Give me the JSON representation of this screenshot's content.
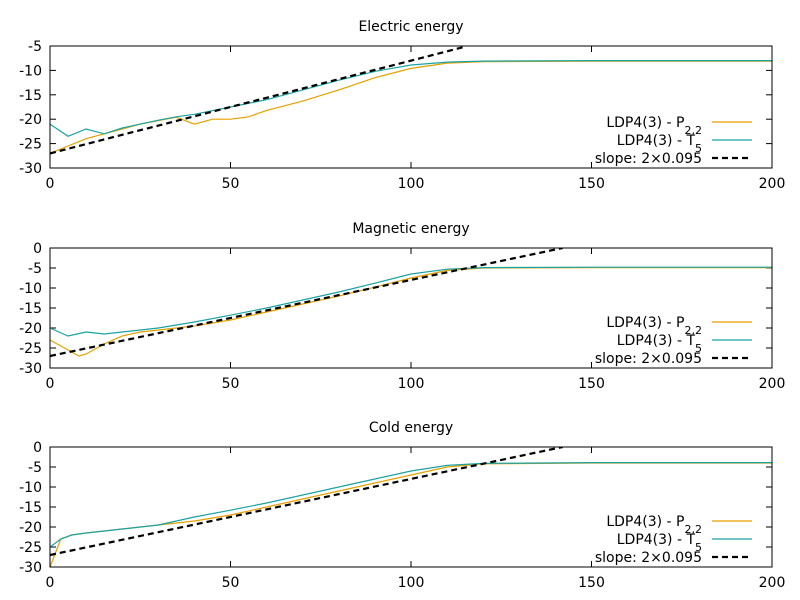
{
  "chart_data": [
    {
      "type": "line",
      "title": "Electric energy",
      "xlim": [
        0,
        200
      ],
      "ylim": [
        -30,
        -5
      ],
      "xticks": [
        "0",
        "50",
        "100",
        "150",
        "200"
      ],
      "yticks": [
        "-5",
        "-10",
        "-15",
        "-20",
        "-25",
        "-30"
      ],
      "legend_position": "bottom-right",
      "series": [
        {
          "name": "LDP4(3) - P2,2",
          "color": "#e69f00",
          "points": [
            [
              0,
              -27
            ],
            [
              5,
              -25.5
            ],
            [
              10,
              -24
            ],
            [
              15,
              -23
            ],
            [
              20,
              -22
            ],
            [
              25,
              -21
            ],
            [
              30,
              -20.3
            ],
            [
              35,
              -19.6
            ],
            [
              40,
              -21
            ],
            [
              45,
              -20
            ],
            [
              50,
              -20
            ],
            [
              55,
              -19.5
            ],
            [
              60,
              -18.2
            ],
            [
              70,
              -16.3
            ],
            [
              80,
              -14
            ],
            [
              90,
              -11.5
            ],
            [
              100,
              -9.6
            ],
            [
              110,
              -8.5
            ],
            [
              120,
              -8.2
            ],
            [
              150,
              -8.1
            ],
            [
              200,
              -8.1
            ]
          ]
        },
        {
          "name": "LDP4(3) - T5",
          "color": "#1aa3a3",
          "points": [
            [
              0,
              -21
            ],
            [
              5,
              -23.5
            ],
            [
              10,
              -22
            ],
            [
              15,
              -23
            ],
            [
              20,
              -21.8
            ],
            [
              25,
              -21
            ],
            [
              30,
              -20.2
            ],
            [
              35,
              -19.5
            ],
            [
              40,
              -19
            ],
            [
              50,
              -17.5
            ],
            [
              60,
              -16
            ],
            [
              70,
              -14
            ],
            [
              80,
              -12
            ],
            [
              90,
              -10.2
            ],
            [
              100,
              -8.9
            ],
            [
              110,
              -8.3
            ],
            [
              120,
              -8.1
            ],
            [
              150,
              -8.0
            ],
            [
              200,
              -8.0
            ]
          ]
        },
        {
          "name": "slope: 2×0.095",
          "color": "#000000",
          "dashed": true,
          "points": [
            [
              0,
              -27
            ],
            [
              115,
              -5.15
            ]
          ]
        }
      ]
    },
    {
      "type": "line",
      "title": "Magnetic energy",
      "xlim": [
        0,
        200
      ],
      "ylim": [
        -30,
        0
      ],
      "xticks": [
        "0",
        "50",
        "100",
        "150",
        "200"
      ],
      "yticks": [
        "0",
        "-5",
        "-10",
        "-15",
        "-20",
        "-25",
        "-30"
      ],
      "legend_position": "bottom-right",
      "series": [
        {
          "name": "LDP4(3) - P2,2",
          "color": "#e69f00",
          "points": [
            [
              0,
              -23
            ],
            [
              5,
              -25.5
            ],
            [
              8,
              -27
            ],
            [
              10,
              -26.5
            ],
            [
              15,
              -24
            ],
            [
              20,
              -22
            ],
            [
              25,
              -21
            ],
            [
              30,
              -20.5
            ],
            [
              40,
              -19.5
            ],
            [
              50,
              -18
            ],
            [
              60,
              -16
            ],
            [
              70,
              -14
            ],
            [
              80,
              -12
            ],
            [
              90,
              -9.8
            ],
            [
              100,
              -7.5
            ],
            [
              110,
              -5.6
            ],
            [
              120,
              -5
            ],
            [
              150,
              -4.9
            ],
            [
              200,
              -4.9
            ]
          ]
        },
        {
          "name": "LDP4(3) - T5",
          "color": "#1aa3a3",
          "points": [
            [
              0,
              -20
            ],
            [
              5,
              -22
            ],
            [
              10,
              -21
            ],
            [
              15,
              -21.5
            ],
            [
              20,
              -21
            ],
            [
              25,
              -20.5
            ],
            [
              30,
              -20
            ],
            [
              40,
              -18.5
            ],
            [
              50,
              -16.8
            ],
            [
              60,
              -15
            ],
            [
              70,
              -13
            ],
            [
              80,
              -11
            ],
            [
              90,
              -8.8
            ],
            [
              100,
              -6.5
            ],
            [
              110,
              -5.3
            ],
            [
              120,
              -4.9
            ],
            [
              150,
              -4.8
            ],
            [
              200,
              -4.8
            ]
          ]
        },
        {
          "name": "slope: 2×0.095",
          "color": "#000000",
          "dashed": true,
          "points": [
            [
              0,
              -27
            ],
            [
              142,
              0
            ]
          ]
        }
      ]
    },
    {
      "type": "line",
      "title": "Cold energy",
      "xlim": [
        0,
        200
      ],
      "ylim": [
        -30,
        0
      ],
      "xticks": [
        "0",
        "50",
        "100",
        "150",
        "200"
      ],
      "yticks": [
        "0",
        "-5",
        "-10",
        "-15",
        "-20",
        "-25",
        "-30"
      ],
      "legend_position": "bottom-right",
      "series": [
        {
          "name": "LDP4(3) - P2,2",
          "color": "#e69f00",
          "points": [
            [
              0,
              -30
            ],
            [
              3,
              -23
            ],
            [
              6,
              -22
            ],
            [
              10,
              -21.5
            ],
            [
              15,
              -21
            ],
            [
              20,
              -20.5
            ],
            [
              25,
              -20
            ],
            [
              30,
              -19.5
            ],
            [
              40,
              -18.5
            ],
            [
              50,
              -17
            ],
            [
              60,
              -15
            ],
            [
              70,
              -13
            ],
            [
              80,
              -11
            ],
            [
              90,
              -9
            ],
            [
              100,
              -7
            ],
            [
              110,
              -5
            ],
            [
              120,
              -4.2
            ],
            [
              150,
              -4
            ],
            [
              200,
              -4
            ]
          ]
        },
        {
          "name": "LDP4(3) - T5",
          "color": "#1aa3a3",
          "points": [
            [
              0,
              -25
            ],
            [
              3,
              -23
            ],
            [
              6,
              -22
            ],
            [
              10,
              -21.5
            ],
            [
              15,
              -21
            ],
            [
              20,
              -20.5
            ],
            [
              25,
              -20
            ],
            [
              30,
              -19.5
            ],
            [
              40,
              -17.5
            ],
            [
              50,
              -15.8
            ],
            [
              60,
              -14
            ],
            [
              70,
              -12
            ],
            [
              80,
              -10
            ],
            [
              90,
              -8
            ],
            [
              100,
              -6
            ],
            [
              110,
              -4.6
            ],
            [
              120,
              -4.1
            ],
            [
              150,
              -3.9
            ],
            [
              200,
              -3.9
            ]
          ]
        },
        {
          "name": "slope: 2×0.095",
          "color": "#000000",
          "dashed": true,
          "points": [
            [
              0,
              -27
            ],
            [
              142,
              0
            ]
          ]
        }
      ]
    }
  ]
}
